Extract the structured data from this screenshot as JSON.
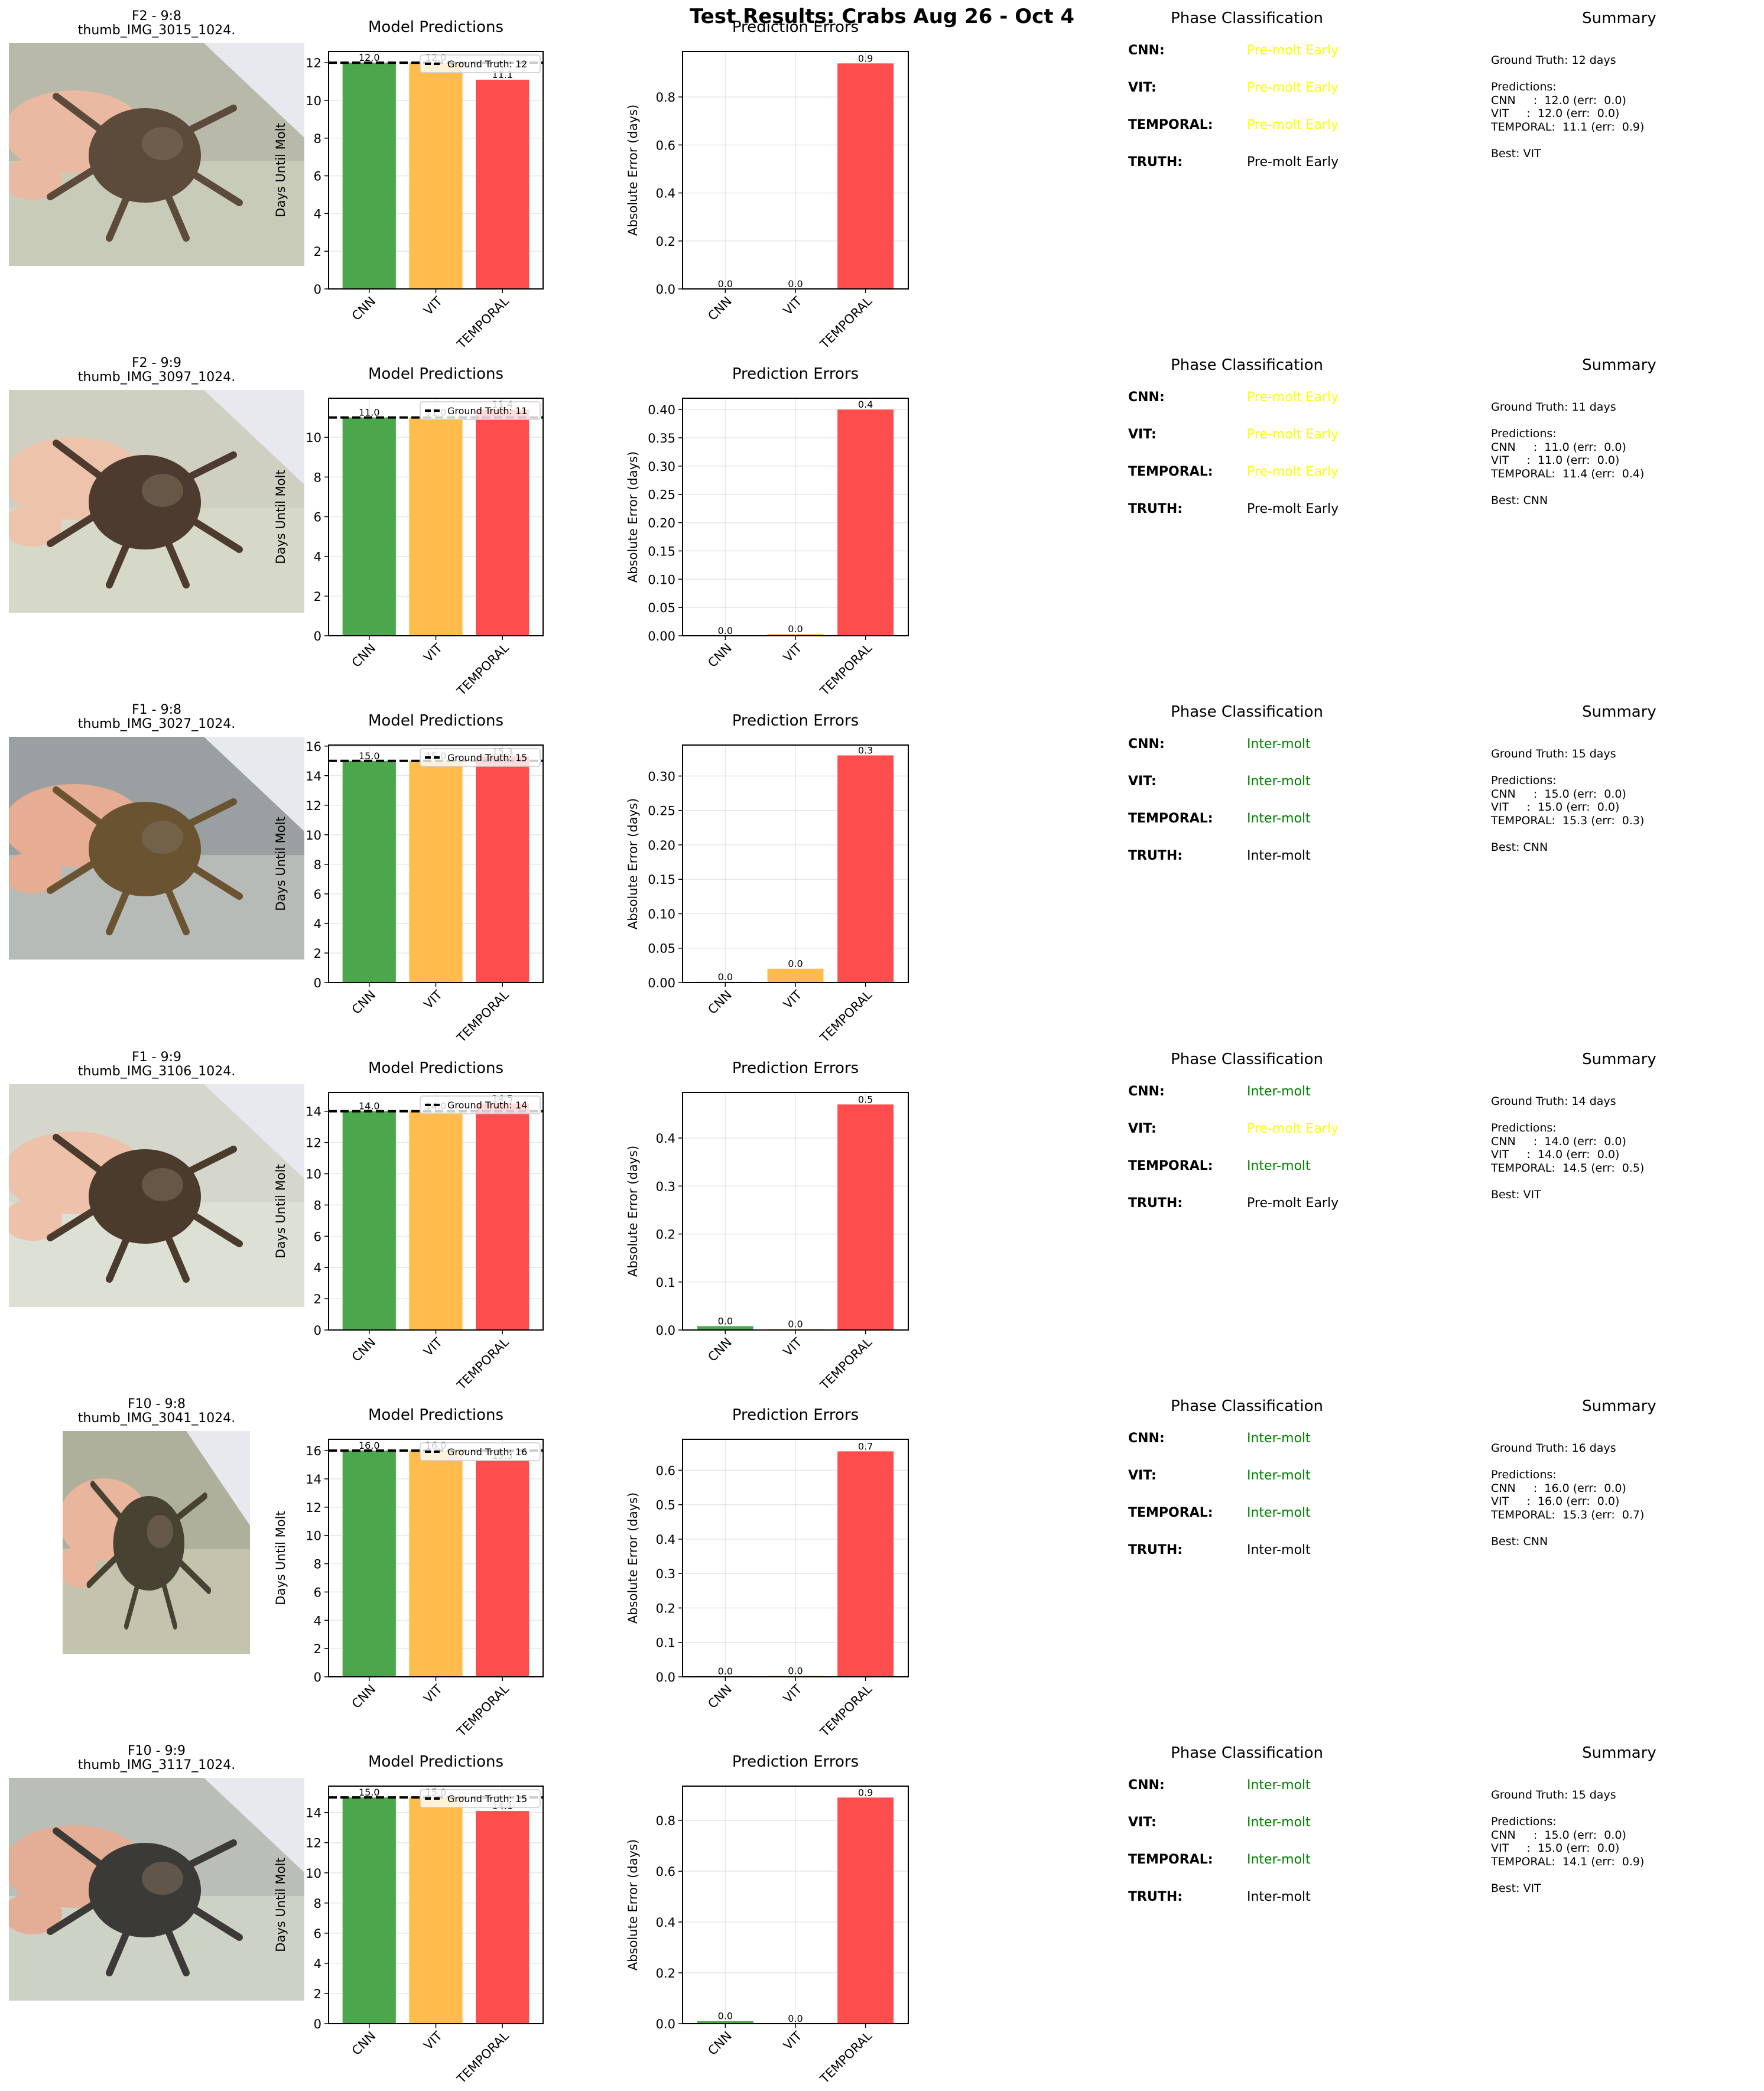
{
  "figure_title": "Test Results: Crabs Aug 26 - Oct 4",
  "colors": {
    "CNN": "#4ca64c",
    "VIT": "#fdbc4c",
    "TEMPORAL": "#ff4c4c",
    "yellow_text": "#ffff00",
    "green_text": "#008000",
    "black_text": "#000000"
  },
  "labels": {
    "pred_title": "Model Predictions",
    "err_title": "Prediction Errors",
    "pred_ylabel": "Days Until Molt",
    "err_ylabel": "Absolute Error (days)",
    "phase_title": "Phase Classification",
    "summary_title": "Summary",
    "phase_labels": [
      "CNN:",
      "VIT:",
      "TEMPORAL:",
      "TRUTH:"
    ]
  },
  "rows": [
    {
      "thumb_title": "F2 - 9:8",
      "thumb_file": "thumb_IMG_3015_1024.",
      "phases": [
        {
          "text": "Pre-molt Early",
          "color": "yellow"
        },
        {
          "text": "Pre-molt Early",
          "color": "yellow"
        },
        {
          "text": "Pre-molt Early",
          "color": "yellow"
        },
        {
          "text": "Pre-molt Early",
          "color": "black"
        }
      ],
      "summary": "Ground Truth: 12 days\n\nPredictions:\nCNN     :  12.0 (err:  0.0)\nVIT     :  12.0 (err:  0.0)\nTEMPORAL:  11.1 (err:  0.9)\n\nBest: VIT"
    },
    {
      "thumb_title": "F2 - 9:9",
      "thumb_file": "thumb_IMG_3097_1024.",
      "phases": [
        {
          "text": "Pre-molt Early",
          "color": "yellow"
        },
        {
          "text": "Pre-molt Early",
          "color": "yellow"
        },
        {
          "text": "Pre-molt Early",
          "color": "yellow"
        },
        {
          "text": "Pre-molt Early",
          "color": "black"
        }
      ],
      "summary": "Ground Truth: 11 days\n\nPredictions:\nCNN     :  11.0 (err:  0.0)\nVIT     :  11.0 (err:  0.0)\nTEMPORAL:  11.4 (err:  0.4)\n\nBest: CNN"
    },
    {
      "thumb_title": "F1 - 9:8",
      "thumb_file": "thumb_IMG_3027_1024.",
      "phases": [
        {
          "text": "Inter-molt",
          "color": "green"
        },
        {
          "text": "Inter-molt",
          "color": "green"
        },
        {
          "text": "Inter-molt",
          "color": "green"
        },
        {
          "text": "Inter-molt",
          "color": "black"
        }
      ],
      "summary": "Ground Truth: 15 days\n\nPredictions:\nCNN     :  15.0 (err:  0.0)\nVIT     :  15.0 (err:  0.0)\nTEMPORAL:  15.3 (err:  0.3)\n\nBest: CNN"
    },
    {
      "thumb_title": "F1 - 9:9",
      "thumb_file": "thumb_IMG_3106_1024.",
      "phases": [
        {
          "text": "Inter-molt",
          "color": "green"
        },
        {
          "text": "Pre-molt Early",
          "color": "yellow"
        },
        {
          "text": "Inter-molt",
          "color": "green"
        },
        {
          "text": "Pre-molt Early",
          "color": "black"
        }
      ],
      "summary": "Ground Truth: 14 days\n\nPredictions:\nCNN     :  14.0 (err:  0.0)\nVIT     :  14.0 (err:  0.0)\nTEMPORAL:  14.5 (err:  0.5)\n\nBest: VIT"
    },
    {
      "thumb_title": "F10 - 9:8",
      "thumb_file": "thumb_IMG_3041_1024.",
      "phases": [
        {
          "text": "Inter-molt",
          "color": "green"
        },
        {
          "text": "Inter-molt",
          "color": "green"
        },
        {
          "text": "Inter-molt",
          "color": "green"
        },
        {
          "text": "Inter-molt",
          "color": "black"
        }
      ],
      "summary": "Ground Truth: 16 days\n\nPredictions:\nCNN     :  16.0 (err:  0.0)\nVIT     :  16.0 (err:  0.0)\nTEMPORAL:  15.3 (err:  0.7)\n\nBest: CNN"
    },
    {
      "thumb_title": "F10 - 9:9",
      "thumb_file": "thumb_IMG_3117_1024.",
      "phases": [
        {
          "text": "Inter-molt",
          "color": "green"
        },
        {
          "text": "Inter-molt",
          "color": "green"
        },
        {
          "text": "Inter-molt",
          "color": "green"
        },
        {
          "text": "Inter-molt",
          "color": "black"
        }
      ],
      "summary": "Ground Truth: 15 days\n\nPredictions:\nCNN     :  15.0 (err:  0.0)\nVIT     :  15.0 (err:  0.0)\nTEMPORAL:  14.1 (err:  0.9)\n\nBest: VIT"
    }
  ],
  "chart_data": [
    {
      "type": "bar",
      "title": "Model Predictions",
      "ylabel": "Days Until Molt",
      "categories": [
        "CNN",
        "VIT",
        "TEMPORAL"
      ],
      "values": [
        12.0,
        12.0,
        11.1
      ],
      "value_labels": [
        "12.0",
        "12.0",
        "11.1"
      ],
      "ground_truth": 12,
      "legend": "Ground Truth: 12",
      "legend_position": "upper right",
      "ylim": [
        0,
        12.6
      ],
      "yticks": [
        0,
        2,
        4,
        6,
        8,
        10,
        12
      ],
      "ytick_labels": [
        "0",
        "2",
        "4",
        "6",
        "8",
        "10",
        "12"
      ]
    },
    {
      "type": "bar",
      "title": "Prediction Errors",
      "ylabel": "Absolute Error (days)",
      "categories": [
        "CNN",
        "VIT",
        "TEMPORAL"
      ],
      "values": [
        0.0,
        0.0,
        0.94
      ],
      "value_labels": [
        "0.0",
        "0.0",
        "0.9"
      ],
      "ylim": [
        0,
        0.99
      ],
      "yticks": [
        0,
        0.2,
        0.4,
        0.6,
        0.8
      ],
      "ytick_labels": [
        "0.0",
        "0.2",
        "0.4",
        "0.6",
        "0.8"
      ]
    },
    {
      "type": "bar",
      "title": "Model Predictions",
      "ylabel": "Days Until Molt",
      "categories": [
        "CNN",
        "VIT",
        "TEMPORAL"
      ],
      "values": [
        11.0,
        11.0,
        11.4
      ],
      "value_labels": [
        "11.0",
        "11.0",
        "11.4"
      ],
      "ground_truth": 11,
      "legend": "Ground Truth: 11",
      "legend_position": "upper right",
      "ylim": [
        0,
        11.97
      ],
      "yticks": [
        0,
        2,
        4,
        6,
        8,
        10
      ],
      "ytick_labels": [
        "0",
        "2",
        "4",
        "6",
        "8",
        "10"
      ]
    },
    {
      "type": "bar",
      "title": "Prediction Errors",
      "ylabel": "Absolute Error (days)",
      "categories": [
        "CNN",
        "VIT",
        "TEMPORAL"
      ],
      "values": [
        0.0,
        0.003,
        0.4
      ],
      "value_labels": [
        "0.0",
        "0.0",
        "0.4"
      ],
      "ylim": [
        0,
        0.42
      ],
      "yticks": [
        0,
        0.05,
        0.1,
        0.15,
        0.2,
        0.25,
        0.3,
        0.35,
        0.4
      ],
      "ytick_labels": [
        "0.00",
        "0.05",
        "0.10",
        "0.15",
        "0.20",
        "0.25",
        "0.30",
        "0.35",
        "0.40"
      ]
    },
    {
      "type": "bar",
      "title": "Model Predictions",
      "ylabel": "Days Until Molt",
      "categories": [
        "CNN",
        "VIT",
        "TEMPORAL"
      ],
      "values": [
        15.0,
        15.0,
        15.3
      ],
      "value_labels": [
        "15.0",
        "15.0",
        "15.3"
      ],
      "ground_truth": 15,
      "legend": "Ground Truth: 15",
      "legend_position": "upper right",
      "ylim": [
        0,
        16.07
      ],
      "yticks": [
        0,
        2,
        4,
        6,
        8,
        10,
        12,
        14,
        16
      ],
      "ytick_labels": [
        "0",
        "2",
        "4",
        "6",
        "8",
        "10",
        "12",
        "14",
        "16"
      ]
    },
    {
      "type": "bar",
      "title": "Prediction Errors",
      "ylabel": "Absolute Error (days)",
      "categories": [
        "CNN",
        "VIT",
        "TEMPORAL"
      ],
      "values": [
        0.001,
        0.02,
        0.33
      ],
      "value_labels": [
        "0.0",
        "0.0",
        "0.3"
      ],
      "ylim": [
        0,
        0.345
      ],
      "yticks": [
        0,
        0.05,
        0.1,
        0.15,
        0.2,
        0.25,
        0.3
      ],
      "ytick_labels": [
        "0.00",
        "0.05",
        "0.10",
        "0.15",
        "0.20",
        "0.25",
        "0.30"
      ]
    },
    {
      "type": "bar",
      "title": "Model Predictions",
      "ylabel": "Days Until Molt",
      "categories": [
        "CNN",
        "VIT",
        "TEMPORAL"
      ],
      "values": [
        14.0,
        14.0,
        14.5
      ],
      "value_labels": [
        "14.0",
        "14.0",
        "14.5"
      ],
      "ground_truth": 14,
      "legend": "Ground Truth: 14",
      "legend_position": "upper right",
      "ylim": [
        0,
        15.2
      ],
      "yticks": [
        0,
        2,
        4,
        6,
        8,
        10,
        12,
        14
      ],
      "ytick_labels": [
        "0",
        "2",
        "4",
        "6",
        "8",
        "10",
        "12",
        "14"
      ]
    },
    {
      "type": "bar",
      "title": "Prediction Errors",
      "ylabel": "Absolute Error (days)",
      "categories": [
        "CNN",
        "VIT",
        "TEMPORAL"
      ],
      "values": [
        0.008,
        0.002,
        0.47
      ],
      "value_labels": [
        "0.0",
        "0.0",
        "0.5"
      ],
      "ylim": [
        0,
        0.495
      ],
      "yticks": [
        0,
        0.1,
        0.2,
        0.3,
        0.4
      ],
      "ytick_labels": [
        "0.0",
        "0.1",
        "0.2",
        "0.3",
        "0.4"
      ]
    },
    {
      "type": "bar",
      "title": "Model Predictions",
      "ylabel": "Days Until Molt",
      "categories": [
        "CNN",
        "VIT",
        "TEMPORAL"
      ],
      "values": [
        16.0,
        16.0,
        15.3
      ],
      "value_labels": [
        "16.0",
        "16.0",
        "15.3"
      ],
      "ground_truth": 16,
      "legend": "Ground Truth: 16",
      "legend_position": "upper right",
      "ylim": [
        0,
        16.8
      ],
      "yticks": [
        0,
        2,
        4,
        6,
        8,
        10,
        12,
        14,
        16
      ],
      "ytick_labels": [
        "0",
        "2",
        "4",
        "6",
        "8",
        "10",
        "12",
        "14",
        "16"
      ]
    },
    {
      "type": "bar",
      "title": "Prediction Errors",
      "ylabel": "Absolute Error (days)",
      "categories": [
        "CNN",
        "VIT",
        "TEMPORAL"
      ],
      "values": [
        0.002,
        0.003,
        0.655
      ],
      "value_labels": [
        "0.0",
        "0.0",
        "0.7"
      ],
      "ylim": [
        0,
        0.69
      ],
      "yticks": [
        0,
        0.1,
        0.2,
        0.3,
        0.4,
        0.5,
        0.6
      ],
      "ytick_labels": [
        "0.0",
        "0.1",
        "0.2",
        "0.3",
        "0.4",
        "0.5",
        "0.6"
      ]
    },
    {
      "type": "bar",
      "title": "Model Predictions",
      "ylabel": "Days Until Molt",
      "categories": [
        "CNN",
        "VIT",
        "TEMPORAL"
      ],
      "values": [
        15.0,
        15.0,
        14.1
      ],
      "value_labels": [
        "15.0",
        "15.0",
        "14.1"
      ],
      "ground_truth": 15,
      "legend": "Ground Truth: 15",
      "legend_position": "upper right",
      "ylim": [
        0,
        15.75
      ],
      "yticks": [
        0,
        2,
        4,
        6,
        8,
        10,
        12,
        14
      ],
      "ytick_labels": [
        "0",
        "2",
        "4",
        "6",
        "8",
        "10",
        "12",
        "14"
      ]
    },
    {
      "type": "bar",
      "title": "Prediction Errors",
      "ylabel": "Absolute Error (days)",
      "categories": [
        "CNN",
        "VIT",
        "TEMPORAL"
      ],
      "values": [
        0.01,
        0.0,
        0.89
      ],
      "value_labels": [
        "0.0",
        "0.0",
        "0.9"
      ],
      "ylim": [
        0,
        0.935
      ],
      "yticks": [
        0,
        0.2,
        0.4,
        0.6,
        0.8
      ],
      "ytick_labels": [
        "0.0",
        "0.2",
        "0.4",
        "0.6",
        "0.8"
      ]
    }
  ]
}
